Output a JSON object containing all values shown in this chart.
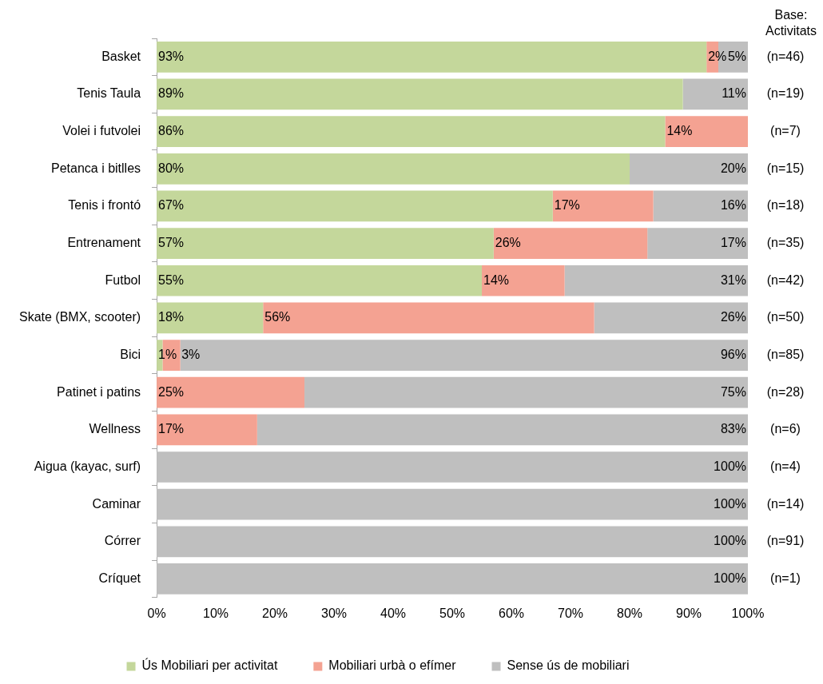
{
  "chart_data": {
    "type": "bar",
    "orientation": "horizontal",
    "stacked": true,
    "categories": [
      "Basket",
      "Tenis Taula",
      "Volei i futvolei",
      "Petanca i bitlles",
      "Tenis i frontó",
      "Entrenament",
      "Futbol",
      "Skate (BMX, scooter)",
      "Bici",
      "Patinet i patins",
      "Wellness",
      "Aigua (kayac, surf)",
      "Caminar",
      "Córrer",
      "Críquet"
    ],
    "series": [
      {
        "name": "Ús Mobiliari per activitat",
        "color": "#c4d79b",
        "values": [
          93,
          89,
          86,
          80,
          67,
          57,
          55,
          18,
          1,
          0,
          0,
          0,
          0,
          0,
          0
        ],
        "value_labels": [
          "93%",
          "89%",
          "86%",
          "80%",
          "67%",
          "57%",
          "55%",
          "18%",
          "1%",
          null,
          null,
          null,
          null,
          null,
          null
        ]
      },
      {
        "name": "Mobiliari urbà o efímer",
        "color": "#f4a292",
        "values": [
          2,
          0,
          14,
          0,
          17,
          26,
          14,
          56,
          3,
          25,
          17,
          0,
          0,
          0,
          0
        ],
        "value_labels": [
          "2%",
          null,
          "14%",
          null,
          "17%",
          "26%",
          "14%",
          "56%",
          "3%",
          "25%",
          "17%",
          null,
          null,
          null,
          null
        ]
      },
      {
        "name": "Sense ús de mobiliari",
        "color": "#bfbfbf",
        "values": [
          5,
          11,
          0,
          20,
          16,
          17,
          31,
          26,
          96,
          75,
          83,
          100,
          100,
          100,
          100
        ],
        "value_labels": [
          "5%",
          "11%",
          null,
          "20%",
          "16%",
          "17%",
          "31%",
          "26%",
          "96%",
          "75%",
          "83%",
          "100%",
          "100%",
          "100%",
          "100%"
        ]
      }
    ],
    "xlim": [
      0,
      100
    ],
    "xticks": [
      {
        "value": 0,
        "label": "0%"
      },
      {
        "value": 10,
        "label": "10%"
      },
      {
        "value": 20,
        "label": "20%"
      },
      {
        "value": 30,
        "label": "30%"
      },
      {
        "value": 40,
        "label": "40%"
      },
      {
        "value": 50,
        "label": "50%"
      },
      {
        "value": 60,
        "label": "60%"
      },
      {
        "value": 70,
        "label": "70%"
      },
      {
        "value": 80,
        "label": "80%"
      },
      {
        "value": 90,
        "label": "90%"
      },
      {
        "value": 100,
        "label": "100%"
      }
    ],
    "legend": "bottom",
    "grid": false,
    "annotations": [
      "Base: Activitats",
      "(n=46)",
      "(n=19)",
      "(n=7)",
      "(n=15)",
      "(n=18)",
      "(n=35)",
      "(n=42)",
      "(n=50)",
      "(n=85)",
      "(n=28)",
      "(n=6)",
      "(n=4)",
      "(n=14)",
      "(n=91)",
      "(n=1)"
    ]
  }
}
